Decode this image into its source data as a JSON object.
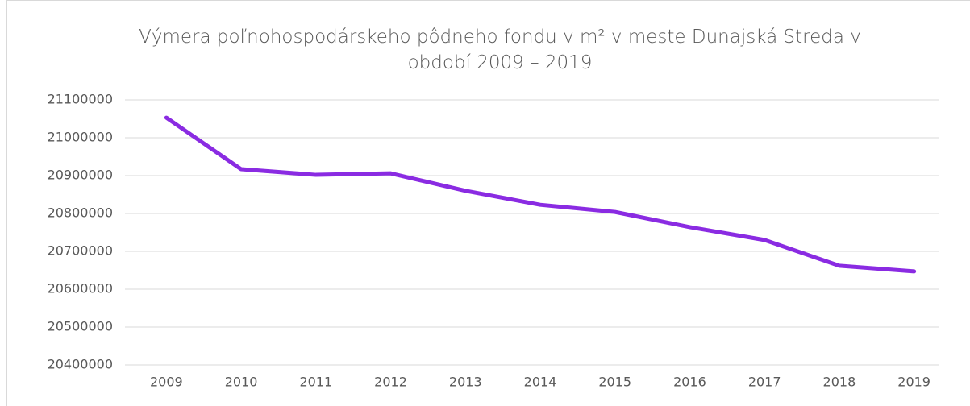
{
  "chart_data": {
    "type": "line",
    "title": "Výmera poľnohospodárskeho pôdneho fondu v m² v meste Dunajská Streda v období 2009 – 2019",
    "categories": [
      "2009",
      "2010",
      "2011",
      "2012",
      "2013",
      "2014",
      "2015",
      "2016",
      "2017",
      "2018",
      "2019"
    ],
    "values": [
      21053000,
      20917000,
      20902000,
      20906000,
      20860000,
      20823000,
      20804000,
      20764000,
      20730000,
      20662000,
      20647000
    ],
    "color": "#8a2be2",
    "ylim": [
      20400000,
      21100000
    ],
    "yticks": [
      20400000,
      20500000,
      20600000,
      20700000,
      20800000,
      20900000,
      21000000,
      21100000
    ],
    "grid": true
  }
}
